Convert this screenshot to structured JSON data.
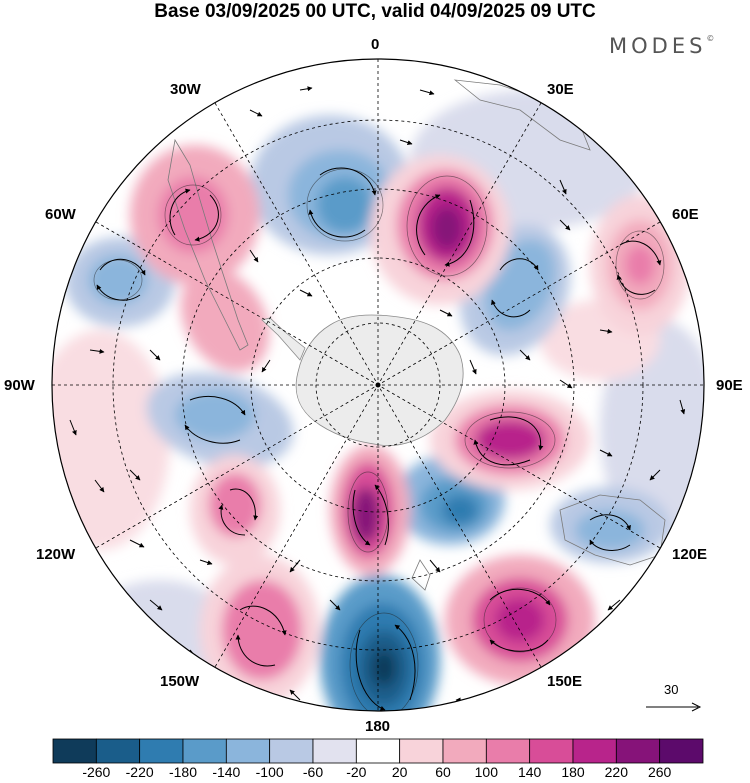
{
  "title": "Base 03/09/2025 00 UTC, valid 04/09/2025 09 UTC",
  "brand": "MODES",
  "brand_mark": "©",
  "map": {
    "projection": "south-polar-stereographic",
    "longitude_labels": {
      "top": "0",
      "top_right": "30E",
      "upper_right": "60E",
      "right": "90E",
      "lower_right": "120E",
      "bottom_right": "150E",
      "bottom": "180",
      "bottom_left": "150W",
      "lower_left": "120W",
      "left": "90W",
      "upper_left": "60W",
      "top_left": "30W"
    },
    "field": "geopotential height anomaly with wind vectors",
    "reference_vector": {
      "label": "30",
      "icon": "arrow-right-icon"
    }
  },
  "colorbar": {
    "labels": [
      "-260",
      "-220",
      "-180",
      "-140",
      "-100",
      "-60",
      "-20",
      "20",
      "60",
      "100",
      "140",
      "180",
      "220",
      "260"
    ],
    "colors": [
      "#0f3b5a",
      "#1a5d8a",
      "#2f7cb0",
      "#5a9bc9",
      "#8bb5dc",
      "#b9c9e4",
      "#e2e2ef",
      "#ffffff",
      "#f8d3da",
      "#f2aabd",
      "#e97daa",
      "#d84d98",
      "#b8248b",
      "#861379",
      "#5c0a6b"
    ]
  },
  "colors": {
    "land": "#ececec",
    "grid": "#000000",
    "coast": "#7a7a7a"
  }
}
